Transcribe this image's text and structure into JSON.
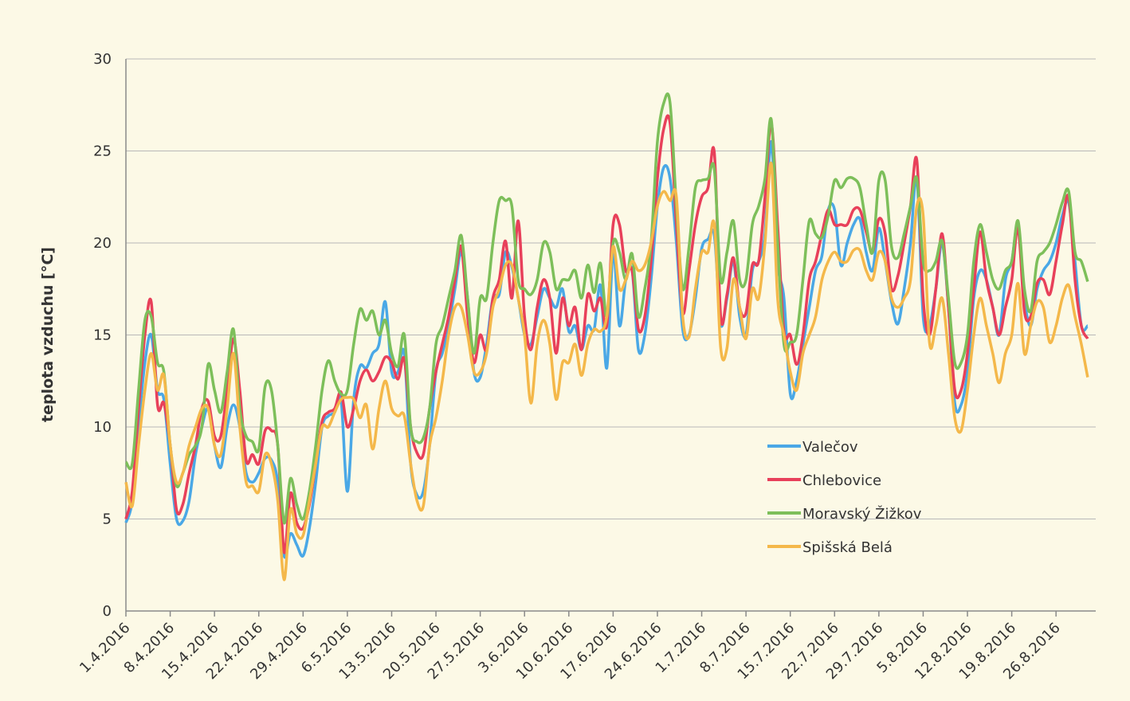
{
  "chart_data": {
    "type": "line",
    "ylabel": "teplota vzduchu [°C]",
    "ylim": [
      0,
      30
    ],
    "yticks": [
      0,
      5,
      10,
      15,
      20,
      25,
      30
    ],
    "grid": true,
    "legend": "right",
    "categories": [
      "1.4.2016",
      null,
      null,
      null,
      null,
      null,
      null,
      "8.4.2016",
      null,
      null,
      null,
      null,
      null,
      null,
      "15.4.2016",
      null,
      null,
      null,
      null,
      null,
      null,
      "22.4.2016",
      null,
      null,
      null,
      null,
      null,
      null,
      "29.4.2016",
      null,
      null,
      null,
      null,
      null,
      null,
      "6.5.2016",
      null,
      null,
      null,
      null,
      null,
      null,
      "13.5.2016",
      null,
      null,
      null,
      null,
      null,
      null,
      "20.5.2016",
      null,
      null,
      null,
      null,
      null,
      null,
      "27.5.2016",
      null,
      null,
      null,
      null,
      null,
      null,
      "3.6.2016",
      null,
      null,
      null,
      null,
      null,
      null,
      "10.6.2016",
      null,
      null,
      null,
      null,
      null,
      null,
      "17.6.2016",
      null,
      null,
      null,
      null,
      null,
      null,
      "24.6.2016",
      null,
      null,
      null,
      null,
      null,
      null,
      "1.7.2016",
      null,
      null,
      null,
      null,
      null,
      null,
      "8.7.2016",
      null,
      null,
      null,
      null,
      null,
      null,
      "15.7.2016",
      null,
      null,
      null,
      null,
      null,
      null,
      "22.7.2016",
      null,
      null,
      null,
      null,
      null,
      null,
      "29.7.2016",
      null,
      null,
      null,
      null,
      null,
      null,
      "5.8.2016",
      null,
      null,
      null,
      null,
      null,
      null,
      "12.8.2016",
      null,
      null,
      null,
      null,
      null,
      null,
      "19.8.2016",
      null,
      null,
      null,
      null,
      null,
      null,
      "26.8.2016",
      null,
      null,
      null,
      null,
      null
    ],
    "series": [
      {
        "name": "Valečov",
        "color": "#4aa8e6",
        "values": [
          4.8,
          6,
          10,
          13.5,
          15,
          12,
          11.5,
          8,
          5,
          4.9,
          6,
          8.5,
          10,
          11,
          9,
          7.8,
          10,
          11.2,
          10,
          7.5,
          7,
          7.5,
          8.3,
          8.2,
          7,
          3,
          4.2,
          3.6,
          3,
          4.5,
          7,
          10,
          10.6,
          10.8,
          11.5,
          6.5,
          11.5,
          13.3,
          13.2,
          14,
          14.5,
          16.8,
          13,
          13,
          14,
          8,
          6.3,
          6.5,
          9,
          13,
          14,
          15.5,
          17.5,
          19.5,
          17,
          13,
          12.7,
          14.5,
          17,
          17.2,
          19.5,
          18.7,
          17,
          15,
          14.5,
          16,
          17.5,
          17,
          16.5,
          17.5,
          15.2,
          15.5,
          14.2,
          15.5,
          15.3,
          17.7,
          13.2,
          19.5,
          15.5,
          18,
          18.5,
          14.2,
          15,
          18,
          22,
          24.1,
          23.5,
          20,
          15.3,
          15,
          17,
          19.7,
          20.2,
          20.4,
          15.6,
          17,
          19,
          16,
          15,
          18.5,
          19,
          20.5,
          25.5,
          19,
          17,
          11.8,
          12.5,
          14.5,
          16.5,
          18.5,
          19.3,
          21.8,
          21.8,
          18.8,
          20,
          21,
          21.3,
          19.5,
          18.5,
          20.8,
          19,
          16.8,
          15.6,
          17.5,
          20,
          23.5,
          16,
          15.5,
          17.5,
          20,
          16.5,
          11.3,
          11.2,
          13,
          17,
          18.5,
          18,
          16.5,
          15,
          18,
          19,
          21,
          17,
          15.5,
          17.5,
          18.5,
          19,
          20,
          21.5,
          22.2,
          19,
          15.5,
          15.5
        ]
      },
      {
        "name": "Chlebovice",
        "color": "#e8405a",
        "values": [
          5,
          6.5,
          11,
          15,
          16.8,
          11.2,
          11.3,
          9,
          5.5,
          5.8,
          7.5,
          9,
          11,
          11.4,
          9.5,
          9.5,
          12,
          14.8,
          12,
          8.2,
          8.5,
          8,
          9.8,
          9.8,
          9,
          3.2,
          6.4,
          4.8,
          4.5,
          5.8,
          8,
          10.3,
          10.8,
          11,
          11.9,
          10,
          11,
          12.5,
          13.1,
          12.5,
          13,
          13.8,
          13.5,
          12.6,
          13.7,
          10,
          8.6,
          8.5,
          11,
          13,
          14.5,
          16,
          18,
          19.8,
          16,
          13.5,
          15,
          14.2,
          17,
          18,
          20.1,
          17,
          21.2,
          16,
          14.2,
          16.5,
          18,
          17,
          14,
          17,
          15.5,
          16.5,
          14.2,
          17.2,
          16.3,
          17,
          15.5,
          21,
          21,
          18.5,
          18.5,
          15.3,
          16,
          19,
          23.5,
          26.2,
          26.5,
          21,
          16.2,
          18.5,
          21,
          22.5,
          23,
          24.9,
          16,
          17.2,
          19.2,
          16.5,
          16.2,
          18.8,
          19,
          22.5,
          26.5,
          21,
          15.2,
          15,
          13.4,
          15,
          18,
          19,
          20.5,
          21.8,
          21,
          21,
          21,
          21.8,
          21.8,
          20.6,
          19.5,
          21.3,
          20.5,
          17.5,
          18.2,
          20,
          22,
          24.5,
          17,
          15,
          17.5,
          20.5,
          16.5,
          12,
          12,
          14,
          17.5,
          20.6,
          18,
          16.5,
          15,
          16.5,
          18,
          20.8,
          16.3,
          16,
          17.8,
          18,
          17.2,
          19,
          21,
          22.5,
          18,
          15.5,
          14.8
        ]
      },
      {
        "name": "Moravský Žižkov",
        "color": "#7dbf5a",
        "values": [
          8.1,
          8,
          12,
          15.8,
          16,
          13.5,
          13,
          9,
          6.8,
          7.5,
          8.5,
          9,
          10,
          13.4,
          12,
          10.8,
          13,
          15.3,
          11,
          9.5,
          9.2,
          8.8,
          12.2,
          12,
          9,
          4.8,
          7.2,
          5.8,
          5,
          6.5,
          9,
          12,
          13.6,
          12.5,
          11.8,
          12,
          14.5,
          16.4,
          15.8,
          16.3,
          15,
          15.8,
          14,
          13.3,
          15,
          10,
          9.2,
          9.4,
          11,
          14.5,
          15.5,
          17,
          18.5,
          20.4,
          17,
          14,
          17,
          17,
          20,
          22.3,
          22.3,
          22,
          18,
          17.5,
          17.2,
          18,
          20,
          19.5,
          17.5,
          18,
          18,
          18.5,
          17,
          18.8,
          17.3,
          18.9,
          16,
          20,
          19.5,
          18,
          19.4,
          16,
          17.5,
          20,
          25.5,
          27.6,
          27.6,
          22,
          17.5,
          19.8,
          23,
          23.4,
          23.5,
          24,
          18,
          19.5,
          21.2,
          18,
          18,
          21,
          22,
          23.5,
          26.7,
          20,
          14.5,
          14.6,
          15,
          18,
          21.2,
          20.5,
          20.3,
          21.5,
          23.4,
          23,
          23.5,
          23.5,
          23,
          21,
          19.5,
          23.4,
          23.4,
          19.8,
          19.2,
          20.5,
          22,
          23.5,
          19,
          18.5,
          19,
          20.1,
          17,
          13.5,
          13.5,
          15,
          19,
          21,
          19.5,
          18,
          17.5,
          18.5,
          19,
          21.2,
          17.5,
          16.3,
          19,
          19.5,
          20,
          21,
          22.2,
          22.8,
          19.5,
          19,
          17.9
        ]
      },
      {
        "name": "Spišská Belá",
        "color": "#f4b84a",
        "values": [
          7,
          5.7,
          9,
          12,
          14,
          12,
          12.8,
          9,
          7,
          7.5,
          9,
          10,
          11,
          11,
          9,
          8.5,
          11,
          14,
          10,
          7,
          6.8,
          6.5,
          8.5,
          8,
          6,
          1.7,
          5.5,
          4.2,
          4.1,
          6,
          8,
          10,
          10,
          10.8,
          11.5,
          11.6,
          11.5,
          10.5,
          11.2,
          8.8,
          11,
          12.5,
          11,
          10.6,
          10.6,
          8,
          6,
          5.7,
          9,
          10.5,
          12.5,
          15,
          16.5,
          16.5,
          15,
          13,
          13,
          14,
          16.5,
          17.5,
          18.8,
          18.8,
          17,
          15,
          11.3,
          14.5,
          15.8,
          14.5,
          11.5,
          13.5,
          13.5,
          14.5,
          12.8,
          14.5,
          15.3,
          15.2,
          16,
          19.8,
          17.5,
          18,
          19,
          18.5,
          18.8,
          20,
          22,
          22.8,
          22.3,
          22.5,
          16,
          14.9,
          17.5,
          19.5,
          19.5,
          21,
          14.3,
          14.3,
          18,
          16.5,
          14.8,
          17.5,
          17,
          20,
          24.3,
          17,
          15,
          13,
          12,
          14,
          15,
          16,
          18,
          19,
          19.5,
          19,
          19,
          19.6,
          19.6,
          18.5,
          18,
          19.5,
          19,
          17,
          16.5,
          17,
          18,
          22,
          21.5,
          14.6,
          15.5,
          17,
          14,
          10.5,
          9.8,
          12,
          15,
          17,
          15.5,
          14,
          12.4,
          14,
          15,
          17.8,
          14,
          15.5,
          16.8,
          16.5,
          14.6,
          15.5,
          17,
          17.7,
          16,
          14.5,
          12.7
        ]
      }
    ]
  }
}
